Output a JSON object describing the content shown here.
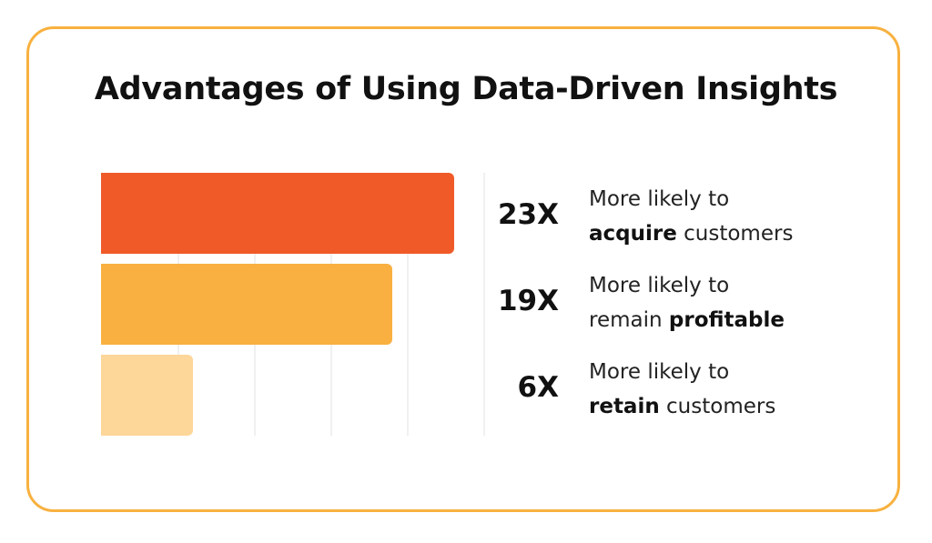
{
  "title": "Advantages of Using Data-Driven Insights",
  "colors": {
    "border": "#f8b13f",
    "bar_1": "#f05a28",
    "bar_2": "#f9b040",
    "bar_3": "#fdd699",
    "grid": "#e2e2e2"
  },
  "chart_data": {
    "type": "bar",
    "orientation": "horizontal",
    "title": "Advantages of Using Data-Driven Insights",
    "categories": [
      "More likely to acquire customers",
      "More likely to remain profitable",
      "More likely to retain customers"
    ],
    "values": [
      23,
      19,
      6
    ],
    "data_labels": [
      "23X",
      "19X",
      "6X"
    ],
    "xlim": [
      0,
      25
    ],
    "grid": true,
    "axis_ticks_visible": false
  },
  "rows": [
    {
      "value_label": "23X",
      "line1": "More likely to",
      "bold": "acquire",
      "rest": " customers",
      "bold_first": true
    },
    {
      "value_label": "19X",
      "line1": "More likely to",
      "pre": "remain ",
      "bold": "profitable",
      "bold_first": false
    },
    {
      "value_label": "6X",
      "line1": "More likely to",
      "bold": "retain",
      "rest": " customers",
      "bold_first": true
    }
  ]
}
